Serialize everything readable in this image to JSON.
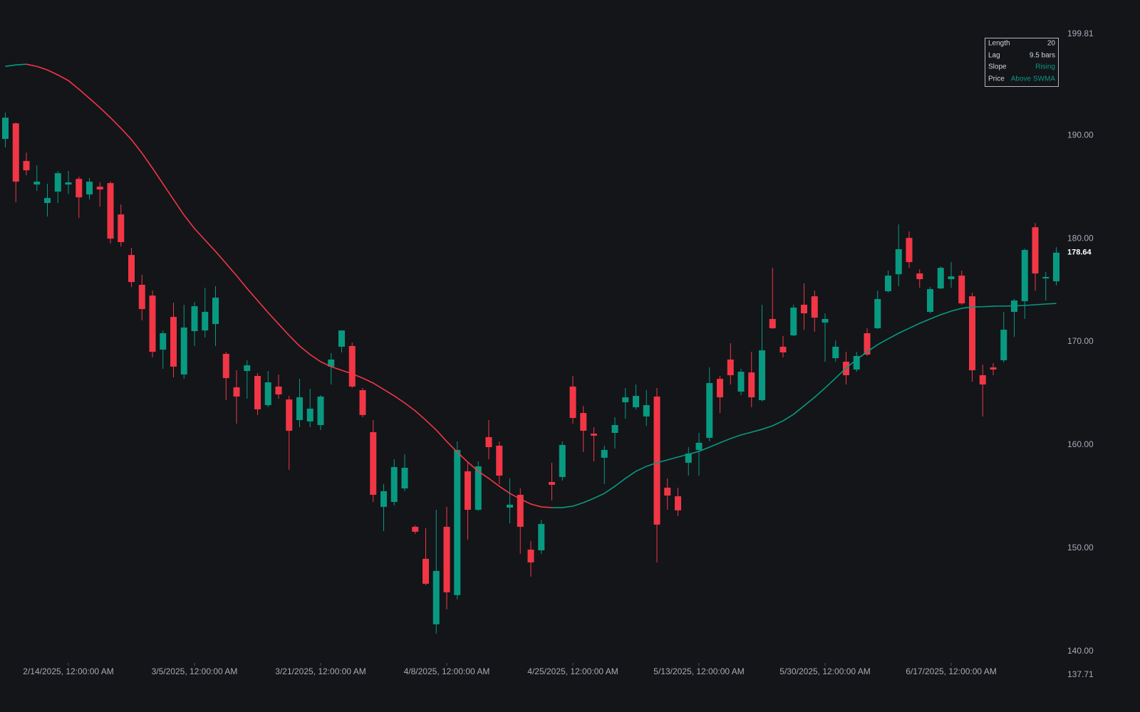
{
  "chart_data": {
    "type": "candlestick",
    "categories": [
      null,
      null,
      null,
      null,
      null,
      null,
      "2/14/2025, 12:00:00 AM",
      null,
      null,
      null,
      null,
      null,
      null,
      null,
      null,
      null,
      null,
      null,
      "3/5/2025, 12:00:00 AM",
      null,
      null,
      null,
      null,
      null,
      null,
      null,
      null,
      null,
      null,
      null,
      "3/21/2025, 12:00:00 AM",
      null,
      null,
      null,
      null,
      null,
      null,
      null,
      null,
      null,
      null,
      null,
      "4/8/2025, 12:00:00 AM",
      null,
      null,
      null,
      null,
      null,
      null,
      null,
      null,
      null,
      null,
      null,
      "4/25/2025, 12:00:00 AM",
      null,
      null,
      null,
      null,
      null,
      null,
      null,
      null,
      null,
      null,
      null,
      "5/13/2025, 12:00:00 AM",
      null,
      null,
      null,
      null,
      null,
      null,
      null,
      null,
      null,
      null,
      null,
      "5/30/2025, 12:00:00 AM",
      null,
      null,
      null,
      null,
      null,
      null,
      null,
      null,
      null,
      null,
      null,
      "6/17/2025, 12:00:00 AM",
      null,
      null,
      null,
      null,
      null,
      null,
      null,
      null,
      null,
      null
    ],
    "open": [
      189.66,
      191.17,
      187.52,
      185.24,
      183.45,
      184.55,
      185.24,
      185.79,
      184.28,
      185.03,
      185.38,
      182.34,
      178.41,
      175.52,
      174.48,
      169.24,
      172.41,
      166.83,
      171.03,
      171.1,
      171.72,
      168.83,
      165.59,
      167.17,
      166.69,
      163.86,
      165.66,
      164.41,
      162.41,
      162.28,
      161.93,
      167.59,
      169.52,
      169.59,
      165.31,
      161.24,
      154.0,
      154.48,
      155.79,
      152.07,
      148.97,
      142.62,
      152.07,
      145.45,
      157.45,
      153.72,
      160.76,
      159.93,
      153.93,
      155.17,
      149.86,
      149.79,
      156.41,
      156.9,
      165.66,
      163.1,
      161.1,
      158.76,
      161.17,
      164.14,
      163.66,
      162.76,
      164.69,
      155.86,
      155.03,
      158.28,
      159.52,
      160.69,
      166.41,
      168.28,
      165.17,
      167.03,
      164.34,
      172.21,
      169.52,
      170.62,
      173.59,
      174.41,
      171.86,
      168.41,
      168.07,
      167.31,
      170.83,
      171.31,
      174.9,
      176.55,
      180.07,
      176.62,
      172.9,
      175.17,
      176.07,
      176.41,
      174.41,
      166.76,
      167.52,
      168.21,
      172.9,
      173.93,
      181.1,
      176.14,
      175.86
    ],
    "high": [
      192.21,
      191.24,
      188.34,
      187.1,
      185.31,
      186.55,
      186.55,
      186.0,
      185.86,
      185.45,
      185.52,
      183.31,
      179.1,
      176.48,
      174.97,
      171.1,
      173.79,
      173.59,
      173.86,
      175.24,
      175.38,
      169.03,
      167.24,
      168.21,
      166.97,
      167.17,
      166.83,
      164.76,
      166.41,
      165.45,
      164.83,
      168.9,
      171.1,
      169.93,
      165.52,
      162.41,
      156.21,
      158.62,
      159.1,
      152.21,
      151.93,
      153.72,
      154.0,
      160.34,
      158.41,
      158.41,
      162.41,
      160.34,
      156.76,
      155.79,
      150.69,
      152.76,
      158.28,
      160.34,
      166.69,
      163.79,
      161.72,
      159.93,
      162.69,
      165.52,
      165.86,
      165.31,
      165.52,
      156.76,
      155.86,
      159.79,
      161.17,
      167.52,
      166.69,
      169.86,
      167.38,
      169.03,
      173.59,
      177.17,
      170.55,
      173.59,
      175.66,
      174.97,
      172.76,
      170.14,
      169.03,
      169.03,
      171.31,
      174.97,
      176.9,
      181.38,
      180.69,
      177.03,
      175.31,
      177.31,
      177.72,
      176.9,
      174.76,
      167.79,
      167.93,
      172.9,
      174.14,
      179.03,
      181.52,
      176.76,
      179.17
    ],
    "low": [
      188.83,
      183.52,
      186.14,
      184.62,
      182.14,
      183.45,
      184.34,
      182.0,
      183.79,
      183.1,
      179.52,
      179.24,
      175.31,
      172.07,
      168.48,
      167.38,
      166.55,
      166.41,
      169.59,
      170.41,
      169.59,
      164.34,
      162.07,
      164.48,
      162.9,
      163.66,
      164.48,
      157.59,
      161.72,
      161.72,
      161.45,
      165.86,
      168.97,
      165.52,
      162.69,
      154.48,
      151.66,
      154.14,
      155.52,
      151.38,
      146.41,
      141.72,
      144.07,
      145.03,
      150.83,
      153.59,
      158.62,
      156.21,
      152.41,
      149.45,
      147.24,
      149.45,
      154.62,
      156.55,
      162.07,
      159.31,
      158.41,
      156.21,
      159.66,
      162.55,
      163.45,
      161.86,
      148.62,
      153.72,
      153.1,
      157.03,
      157.03,
      160.34,
      163.1,
      165.86,
      164.83,
      163.66,
      164.21,
      171.24,
      168.48,
      170.55,
      171.17,
      170.97,
      168.07,
      168.07,
      165.86,
      167.1,
      168.62,
      171.24,
      174.76,
      175.38,
      177.17,
      175.24,
      172.76,
      175.1,
      175.24,
      173.59,
      166.14,
      162.76,
      166.76,
      168.0,
      170.48,
      172.21,
      174.97,
      174.0,
      175.45
    ],
    "close": [
      191.72,
      185.52,
      186.62,
      185.52,
      183.93,
      186.34,
      185.45,
      184.0,
      185.52,
      184.76,
      180.0,
      179.66,
      175.79,
      173.17,
      169.03,
      170.83,
      167.59,
      171.38,
      173.45,
      172.9,
      174.28,
      166.48,
      164.69,
      167.72,
      163.45,
      166.07,
      164.9,
      161.38,
      164.62,
      163.52,
      164.69,
      168.28,
      171.1,
      165.66,
      162.9,
      155.17,
      155.52,
      157.86,
      157.79,
      151.59,
      146.55,
      147.79,
      145.72,
      159.52,
      153.72,
      157.93,
      159.79,
      157.03,
      154.21,
      152.07,
      148.62,
      152.34,
      156.14,
      160.0,
      162.62,
      161.38,
      160.9,
      159.52,
      161.93,
      164.62,
      164.76,
      163.86,
      152.28,
      155.1,
      153.66,
      159.17,
      160.21,
      166.0,
      164.62,
      166.76,
      167.1,
      164.62,
      169.17,
      171.31,
      168.97,
      173.31,
      172.76,
      172.34,
      172.21,
      169.52,
      166.76,
      168.62,
      168.76,
      174.14,
      176.41,
      178.97,
      177.72,
      176.07,
      175.1,
      177.17,
      176.34,
      173.72,
      167.24,
      165.86,
      167.31,
      171.17,
      174.0,
      178.9,
      176.62,
      176.28,
      178.64
    ],
    "swma_values": [
      196.69,
      196.83,
      196.9,
      196.69,
      196.34,
      195.86,
      195.31,
      194.48,
      193.59,
      192.69,
      191.72,
      190.69,
      189.59,
      188.28,
      186.83,
      185.31,
      183.79,
      182.28,
      180.97,
      179.86,
      178.76,
      177.59,
      176.41,
      175.17,
      174.0,
      172.83,
      171.72,
      170.62,
      169.59,
      168.76,
      168.07,
      167.59,
      167.24,
      166.9,
      166.48,
      166.0,
      165.38,
      164.76,
      164.07,
      163.31,
      162.41,
      161.45,
      160.34,
      159.31,
      158.34,
      157.45,
      156.76,
      156.0,
      155.31,
      154.76,
      154.28,
      154.0,
      153.93,
      153.93,
      154.07,
      154.41,
      154.83,
      155.31,
      156.0,
      156.76,
      157.45,
      157.93,
      158.28,
      158.55,
      158.83,
      159.1,
      159.38,
      159.79,
      160.21,
      160.62,
      160.97,
      161.24,
      161.52,
      161.86,
      162.34,
      162.97,
      163.79,
      164.62,
      165.52,
      166.48,
      167.45,
      168.28,
      169.03,
      169.72,
      170.28,
      170.83,
      171.31,
      171.79,
      172.21,
      172.62,
      172.97,
      173.24,
      173.38,
      173.4,
      173.45,
      173.46,
      173.48,
      173.52,
      173.59,
      173.66,
      173.72
    ],
    "up_color": "#089981",
    "down_color": "#f23645",
    "ylim": [
      137.71,
      199.81
    ],
    "yticks": [
      199.81,
      {
        "value": 190,
        "label": "190.00"
      },
      {
        "value": 180,
        "label": "180.00"
      },
      {
        "value": 170,
        "label": "170.00"
      },
      {
        "value": 160,
        "label": "160.00"
      },
      {
        "value": 150,
        "label": "150.00"
      },
      {
        "value": 140,
        "label": "140.00"
      },
      137.71
    ],
    "grid": false,
    "info_panel": [
      {
        "label": "Length",
        "value": 20,
        "color": "#d1d4dc"
      },
      {
        "label": "Lag",
        "value": "9.5 bars",
        "color": "#d1d4dc"
      },
      {
        "label": "Slope",
        "value": "Rising",
        "color": "#089981"
      },
      {
        "label": "Price",
        "value": "Above SWMA",
        "color": "#089981"
      }
    ]
  }
}
